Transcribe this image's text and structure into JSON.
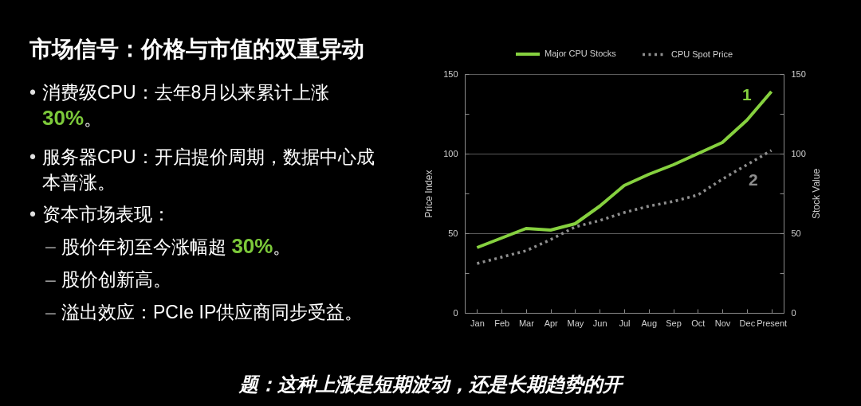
{
  "chart_data": [
    {
      "type": "other",
      "title": "市场信号：价格与市值的双重异动",
      "annotations": [
        "• 消费级CPU：去年8月以来累计上涨 30%。",
        "• 服务器CPU：开启提价周期，数据中心成本普涨。",
        "• 资本市场表现：",
        "– 股价年初至今涨幅超 30%。",
        "– 股价创新高。",
        "– 溢出效应：PCIe IP供应商同步受益。"
      ]
    },
    {
      "type": "line",
      "categories": [
        "Jan",
        "Feb",
        "Mar",
        "Apr",
        "May",
        "Jun",
        "Jul",
        "Aug",
        "Sep",
        "Oct",
        "Nov",
        "Dec",
        "Present"
      ],
      "series": [
        {
          "name": "Major CPU Stocks",
          "color": "#86d13f",
          "axis": "y2",
          "values": [
            41,
            47,
            53,
            52,
            56,
            67,
            80,
            87,
            93,
            100,
            107,
            121,
            139
          ]
        },
        {
          "name": "CPU Spot Price",
          "color": "#8e8e8e",
          "line_style": "dotted",
          "values": [
            31,
            35,
            39,
            46,
            54,
            58,
            63,
            67,
            70,
            74,
            84,
            93,
            102
          ]
        }
      ],
      "ylabel": "Price Index",
      "y2label": "Stock Value",
      "ylim": [
        0,
        150
      ],
      "yticks": [
        0,
        {
          "value": 25,
          "label": null
        },
        50,
        {
          "value": 75,
          "label": null
        },
        100,
        {
          "value": 125,
          "label": null
        },
        150
      ],
      "y2lim": [
        0,
        150
      ],
      "y2ticks": [
        0,
        {
          "value": 25,
          "label": null
        },
        50,
        {
          "value": 75,
          "label": null
        },
        100,
        {
          "value": 125,
          "label": null
        },
        150
      ],
      "grid": "y",
      "legend": "top",
      "annotations": [
        "1",
        "2"
      ]
    },
    {
      "type": "other",
      "annotations": [
        "题：这种上涨是短期波动，还是长期趋势的开"
      ]
    }
  ]
}
